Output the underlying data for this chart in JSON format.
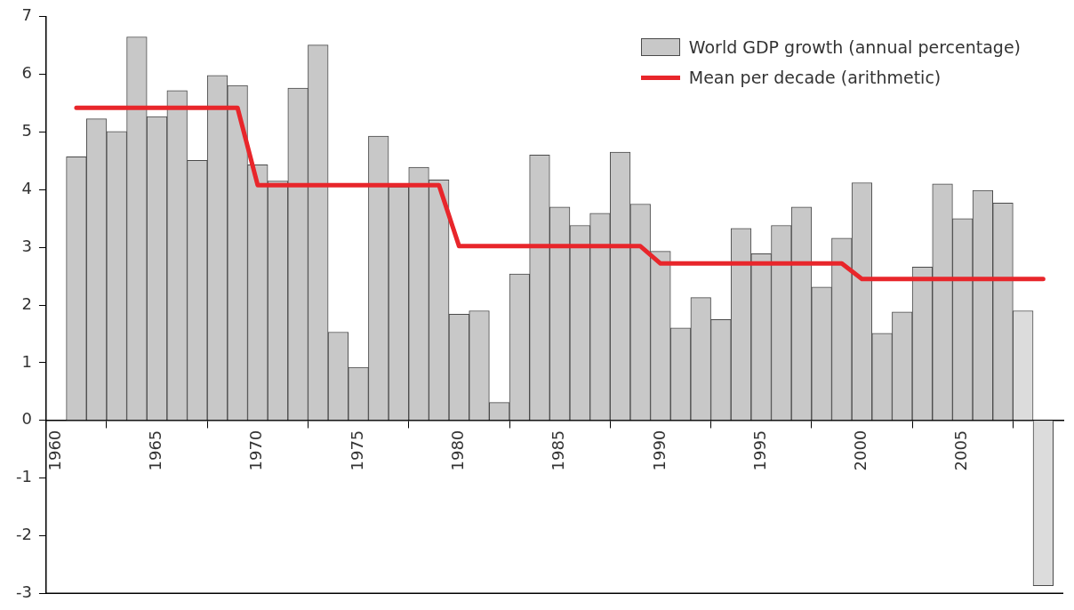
{
  "chart_data": {
    "type": "bar",
    "x": [
      1961,
      1962,
      1963,
      1964,
      1965,
      1966,
      1967,
      1968,
      1969,
      1970,
      1971,
      1972,
      1973,
      1974,
      1975,
      1976,
      1977,
      1978,
      1979,
      1980,
      1981,
      1982,
      1983,
      1984,
      1985,
      1986,
      1987,
      1988,
      1989,
      1990,
      1991,
      1992,
      1993,
      1994,
      1995,
      1996,
      1997,
      1998,
      1999,
      2000,
      2001,
      2002,
      2003,
      2004,
      2005,
      2006,
      2007,
      2008,
      2009
    ],
    "series": [
      {
        "name": "World GDP growth (annual percentage)",
        "color": "#c8c8c8",
        "colors": [
          "#c8c8c8",
          "#c8c8c8",
          "#c8c8c8",
          "#c8c8c8",
          "#c8c8c8",
          "#c8c8c8",
          "#c8c8c8",
          "#c8c8c8",
          "#c8c8c8",
          "#c8c8c8",
          "#c8c8c8",
          "#c8c8c8",
          "#c8c8c8",
          "#c8c8c8",
          "#c8c8c8",
          "#c8c8c8",
          "#c8c8c8",
          "#c8c8c8",
          "#c8c8c8",
          "#c8c8c8",
          "#c8c8c8",
          "#c8c8c8",
          "#c8c8c8",
          "#c8c8c8",
          "#c8c8c8",
          "#c8c8c8",
          "#c8c8c8",
          "#c8c8c8",
          "#c8c8c8",
          "#c8c8c8",
          "#c8c8c8",
          "#c8c8c8",
          "#c8c8c8",
          "#c8c8c8",
          "#c8c8c8",
          "#c8c8c8",
          "#c8c8c8",
          "#c8c8c8",
          "#c8c8c8",
          "#c8c8c8",
          "#c8c8c8",
          "#c8c8c8",
          "#c8c8c8",
          "#c8c8c8",
          "#c8c8c8",
          "#c8c8c8",
          "#c8c8c8",
          "#dcdcdc",
          "#dcdcdc"
        ],
        "values": [
          4.57,
          5.23,
          5.01,
          6.65,
          5.27,
          5.72,
          4.51,
          5.98,
          5.81,
          4.43,
          4.15,
          5.76,
          6.51,
          1.53,
          0.92,
          4.93,
          4.05,
          4.39,
          4.17,
          1.84,
          1.9,
          0.31,
          2.54,
          4.6,
          3.7,
          3.38,
          3.59,
          4.65,
          3.75,
          2.93,
          1.6,
          2.13,
          1.75,
          3.33,
          2.89,
          3.38,
          3.7,
          2.31,
          3.16,
          4.12,
          1.51,
          1.88,
          2.66,
          4.1,
          3.5,
          3.99,
          3.77,
          1.9,
          -2.87
        ]
      },
      {
        "name": "Mean per decade (arithmetic)",
        "type": "line",
        "color": "#e8262b",
        "values": [
          5.42,
          5.42,
          5.42,
          5.42,
          5.42,
          5.42,
          5.42,
          5.42,
          5.42,
          4.08,
          4.08,
          4.08,
          4.08,
          4.08,
          4.08,
          4.08,
          4.08,
          4.08,
          4.08,
          3.02,
          3.02,
          3.02,
          3.02,
          3.02,
          3.02,
          3.02,
          3.02,
          3.02,
          3.02,
          2.72,
          2.72,
          2.72,
          2.72,
          2.72,
          2.72,
          2.72,
          2.72,
          2.72,
          2.72,
          2.45,
          2.45,
          2.45,
          2.45,
          2.45,
          2.45,
          2.45,
          2.45,
          2.45,
          2.45
        ]
      }
    ],
    "xlim": [
      1959.5,
      2010
    ],
    "xticks": [
      1960,
      1965,
      1970,
      1975,
      1980,
      1985,
      1990,
      1995,
      2000,
      2005
    ],
    "ylim": [
      -3,
      7
    ],
    "yticks": [
      -3,
      -2,
      -1,
      0,
      1,
      2,
      3,
      4,
      5,
      6,
      7
    ],
    "grid": false,
    "legend": "top right",
    "marker": "none",
    "line_style": "solid"
  }
}
